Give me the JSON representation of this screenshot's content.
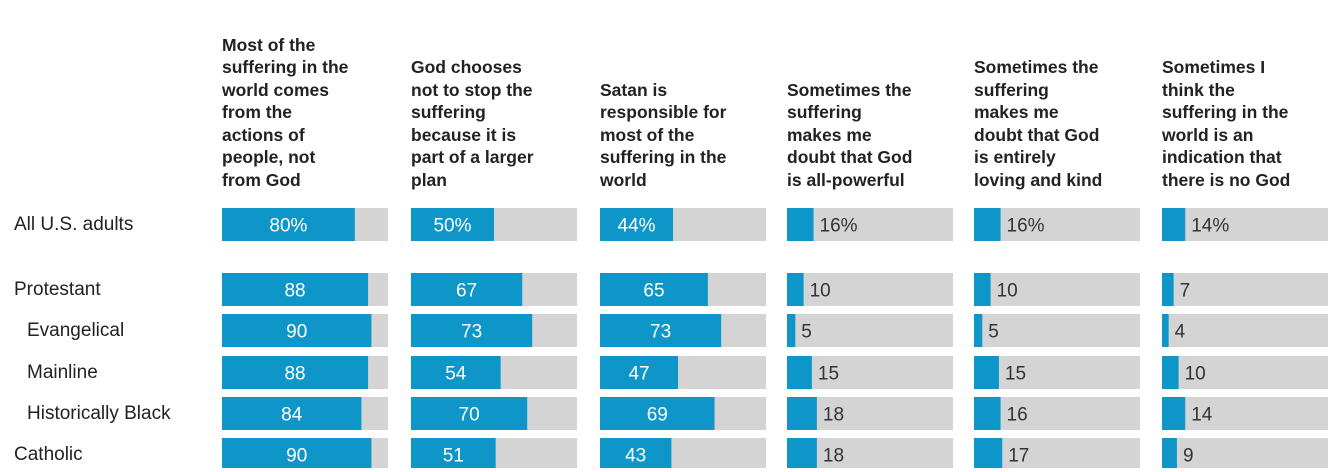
{
  "chart_data": {
    "type": "bar",
    "orientation": "horizontal",
    "value_suffix_first_row": "%",
    "xlim": [
      0,
      100
    ],
    "grid": false,
    "legend": "none",
    "colors": {
      "bar": "#0f96c8",
      "track": "#d4d4d4",
      "inner_label": "#ffffff",
      "outer_label": "#333333"
    },
    "columns": [
      {
        "title": "Most of the suffering in the world comes from the actions of people, not from God",
        "title_lines": [
          "Most of the",
          "suffering in the",
          "world comes",
          "from the",
          "actions of",
          "people, not",
          "from God"
        ]
      },
      {
        "title": "God chooses not to stop the suffering because it is part of a larger plan",
        "title_lines": [
          "God chooses",
          "not to stop the",
          "suffering",
          "because it is",
          "part of a larger",
          "plan"
        ]
      },
      {
        "title": "Satan is responsible for most of the suffering in the world",
        "title_lines": [
          "Satan is",
          "responsible for",
          "most of the",
          "suffering in the",
          "world"
        ]
      },
      {
        "title": "Sometimes the suffering makes me doubt that God is all-powerful",
        "title_lines": [
          "Sometimes the",
          "suffering",
          "makes me",
          "doubt that God",
          "is all-powerful"
        ]
      },
      {
        "title": "Sometimes the suffering makes me doubt that God is entirely loving and kind",
        "title_lines": [
          "Sometimes the",
          "suffering",
          "makes me",
          "doubt that God",
          "is entirely",
          "loving and kind"
        ]
      },
      {
        "title": "Sometimes I think the suffering in the world is an indication that there is no God",
        "title_lines": [
          "Sometimes I",
          "think the",
          "suffering in the",
          "world is an",
          "indication that",
          "there is no God"
        ]
      }
    ],
    "rows": [
      {
        "label": "All U.S. adults",
        "indent": false,
        "values": [
          80,
          50,
          44,
          16,
          16,
          14
        ],
        "labels": [
          "80%",
          "50%",
          "44%",
          "16%",
          "16%",
          "14%"
        ]
      },
      {
        "label": "Protestant",
        "indent": false,
        "values": [
          88,
          67,
          65,
          10,
          10,
          7
        ],
        "labels": [
          "88",
          "67",
          "65",
          "10",
          "10",
          "7"
        ]
      },
      {
        "label": "Evangelical",
        "indent": true,
        "values": [
          90,
          73,
          73,
          5,
          5,
          4
        ],
        "labels": [
          "90",
          "73",
          "73",
          "5",
          "5",
          "4"
        ]
      },
      {
        "label": "Mainline",
        "indent": true,
        "values": [
          88,
          54,
          47,
          15,
          15,
          10
        ],
        "labels": [
          "88",
          "54",
          "47",
          "15",
          "15",
          "10"
        ]
      },
      {
        "label": "Historically Black",
        "indent": true,
        "values": [
          84,
          70,
          69,
          18,
          16,
          14
        ],
        "labels": [
          "84",
          "70",
          "69",
          "18",
          "16",
          "14"
        ]
      },
      {
        "label": "Catholic",
        "indent": false,
        "values": [
          90,
          51,
          43,
          18,
          17,
          9
        ],
        "labels": [
          "90",
          "51",
          "43",
          "18",
          "17",
          "9"
        ]
      }
    ]
  }
}
